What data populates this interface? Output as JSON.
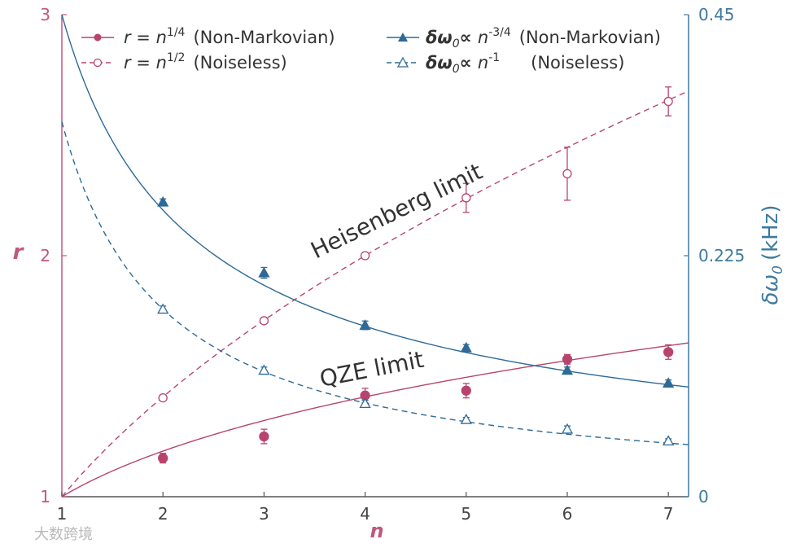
{
  "chart_data": {
    "type": "scatter",
    "x": [
      1,
      2,
      3,
      4,
      5,
      6,
      7
    ],
    "xlim": [
      1,
      7.2
    ],
    "xlabel": "n",
    "xticks": [
      "1",
      "2",
      "3",
      "4",
      "5",
      "6",
      "7"
    ],
    "ylabel_left": "r",
    "ylim_left": [
      1,
      3
    ],
    "yticks_left": [
      "1",
      "2",
      "3"
    ],
    "ylabel_right_symbol": "δω",
    "ylabel_right_sub": "0",
    "ylabel_right_unit": "(kHz)",
    "ylim_right": [
      0,
      0.45
    ],
    "yticks_right": [
      "0",
      "0.225",
      "0.45"
    ],
    "series": [
      {
        "name": "r = n^1/4 (Non-Markovian)",
        "axis": "left",
        "marker": "filled-circle",
        "line": "solid",
        "color": "#b8446e",
        "points": [
          [
            2,
            1.16
          ],
          [
            3,
            1.25
          ],
          [
            4,
            1.42
          ],
          [
            5,
            1.44
          ],
          [
            6,
            1.57
          ],
          [
            7,
            1.6
          ]
        ],
        "err": [
          0.02,
          0.03,
          0.03,
          0.03,
          0.02,
          0.03
        ],
        "fit": "r = n^0.25"
      },
      {
        "name": "r = n^1/2 (Noiseless)",
        "axis": "left",
        "marker": "open-circle",
        "line": "dashed",
        "color": "#b8446e",
        "points": [
          [
            2,
            1.41
          ],
          [
            3,
            1.73
          ],
          [
            4,
            2.0
          ],
          [
            5,
            2.24
          ],
          [
            6,
            2.34
          ],
          [
            7,
            2.64
          ]
        ],
        "err": [
          0.01,
          0.01,
          0.01,
          0.06,
          0.11,
          0.06
        ],
        "fit": "r = n^0.5"
      },
      {
        "name": "δω0 ∝ n^-3/4 (Non-Markovian)",
        "axis": "right",
        "marker": "filled-triangle",
        "line": "solid",
        "color": "#2e6a96",
        "points": [
          [
            2,
            0.275
          ],
          [
            3,
            0.209
          ],
          [
            4,
            0.16
          ],
          [
            5,
            0.139
          ],
          [
            6,
            0.118
          ],
          [
            7,
            0.106
          ]
        ],
        "err": [
          0.003,
          0.005,
          0.004,
          0.003,
          0.003,
          0.003
        ],
        "fit": "0.45 * n^-0.75"
      },
      {
        "name": "δω0 ∝ n^-1 (Noiseless)",
        "axis": "right",
        "marker": "open-triangle",
        "line": "dashed",
        "color": "#2e6a96",
        "points": [
          [
            2,
            0.175
          ],
          [
            3,
            0.118
          ],
          [
            4,
            0.087
          ],
          [
            5,
            0.072
          ],
          [
            6,
            0.063
          ],
          [
            7,
            0.052
          ]
        ],
        "err": [
          0.003,
          0.003,
          0.003,
          0.002,
          0.003,
          0.002
        ],
        "fit": "0.35 / n"
      }
    ],
    "annotations": [
      "Heisenberg limit",
      "QZE limit"
    ],
    "legend": {
      "placement": "top",
      "entries": [
        {
          "lhs": "r = ",
          "base": "n",
          "exp": "1/4",
          "desc": "(Non-Markovian)"
        },
        {
          "lhs": "r = ",
          "base": "n",
          "exp": "1/2",
          "desc": "(Noiseless)"
        },
        {
          "lhs": "δω",
          "sub": "0",
          "prop": "∝ ",
          "base": "n",
          "exp": "-3/4",
          "desc": "(Non-Markovian)"
        },
        {
          "lhs": "δω",
          "sub": "0",
          "prop": "∝ ",
          "base": "n",
          "exp": "-1",
          "desc": "(Noiseless)"
        }
      ]
    },
    "colors": {
      "r": "#b8446e",
      "dw": "#2e6a96"
    }
  },
  "watermark": "大数跨境"
}
